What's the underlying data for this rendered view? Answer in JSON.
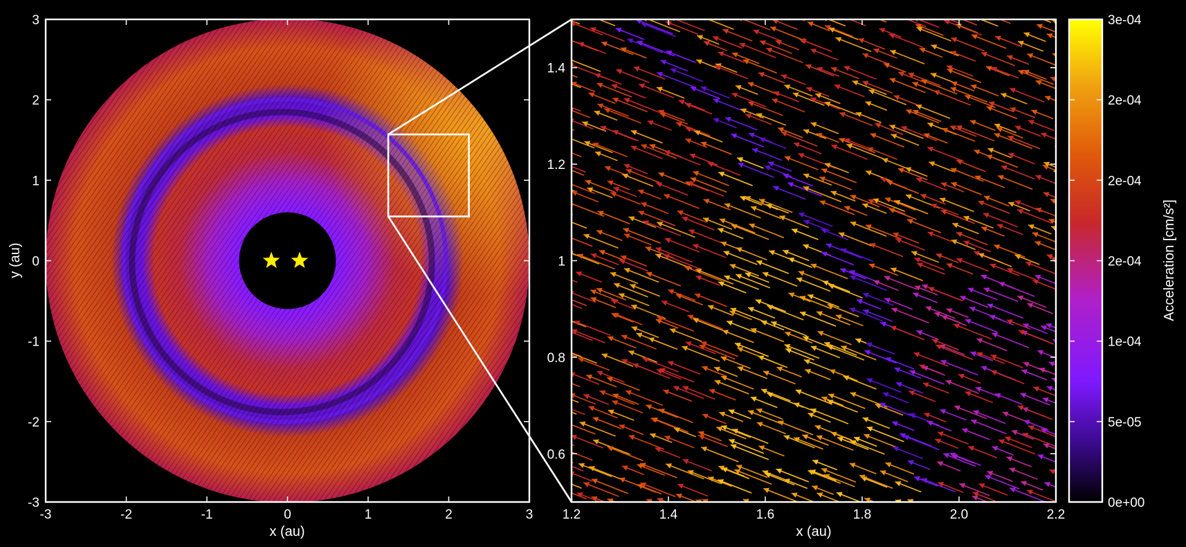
{
  "chart_data": [
    {
      "type": "scatter",
      "panel": "full-disk",
      "title": "",
      "xlabel": "x (au)",
      "ylabel": "y (au)",
      "xlim": [
        -3,
        3
      ],
      "ylim": [
        -3,
        3
      ],
      "xticks": [
        "-3",
        "-2",
        "-1",
        "0",
        "1",
        "2",
        "3"
      ],
      "yticks": [
        "-3",
        "-2",
        "-1",
        "0",
        "1",
        "2",
        "3"
      ],
      "grid": false,
      "stars": [
        {
          "x": -0.2,
          "y": 0.0
        },
        {
          "x": 0.15,
          "y": 0.0
        }
      ],
      "star_color": "#ffee00",
      "central_cavity_radius": 0.6,
      "disk_outer_radius": 3.0,
      "inner_ring_radius": 2.0,
      "zoom_box": {
        "x": [
          1.25,
          2.25
        ],
        "y": [
          0.55,
          1.57
        ]
      }
    },
    {
      "type": "scatter",
      "panel": "zoom",
      "title": "",
      "xlabel": "x (au)",
      "ylabel": "",
      "xlim": [
        1.2,
        2.2
      ],
      "ylim": [
        0.5,
        1.5
      ],
      "xticks": [
        "1.2",
        "1.4",
        "1.6",
        "1.8",
        "2.0",
        "2.2"
      ],
      "yticks": [
        "0.6",
        "0.8",
        "1",
        "1.2",
        "1.4"
      ],
      "grid": false,
      "ring_path": [
        [
          1.34,
          1.5
        ],
        [
          1.55,
          1.3
        ],
        [
          1.7,
          1.12
        ],
        [
          1.83,
          0.95
        ],
        [
          1.9,
          0.78
        ],
        [
          1.94,
          0.62
        ],
        [
          1.98,
          0.5
        ]
      ]
    }
  ],
  "colorbar": {
    "label": "Acceleration [cm/s²]",
    "ticks": [
      "0e+00",
      "5e-05",
      "1e-04",
      "2e-04",
      "2e-04",
      "2e-04",
      "3e-04"
    ],
    "range": [
      0,
      0.0003
    ],
    "colormap": [
      "#000000",
      "#3a0a8c",
      "#7f19ff",
      "#b020c8",
      "#c8282a",
      "#e05a0a",
      "#f0a010",
      "#ffff00"
    ]
  }
}
